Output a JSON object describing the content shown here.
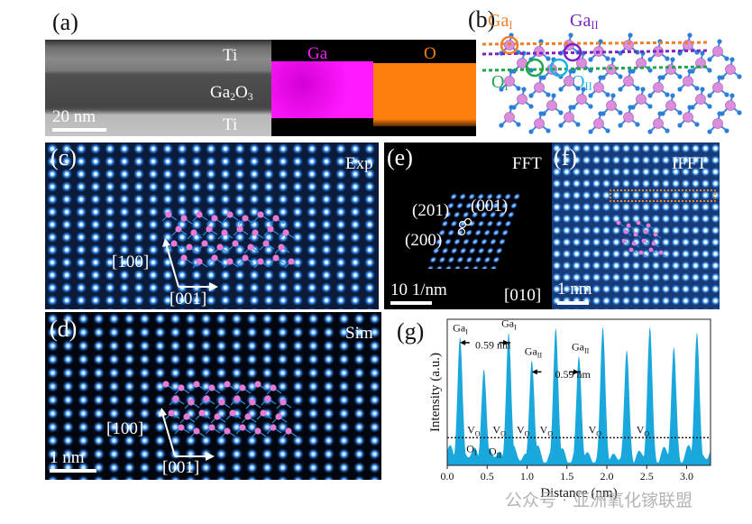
{
  "panels": {
    "a": {
      "label": "(a)",
      "layers": {
        "top": "Ti",
        "middle_main": "Ga",
        "middle_sub": "2",
        "middle_main2": "O",
        "middle_sub2": "3",
        "bottom": "Ti"
      },
      "scale_bar": "20 nm",
      "eds_ga": "Ga",
      "eds_o": "O",
      "colors": {
        "ga_map": "#ff1aff",
        "o_map": "#ff7f0e"
      }
    },
    "b": {
      "label": "(b)",
      "ga1_main": "Ga",
      "ga1_sub": "I",
      "ga2_main": "Ga",
      "ga2_sub": "II",
      "o1_main": "O",
      "o1_sub": "I",
      "o2_main": "O",
      "o2_sub": "II",
      "colors": {
        "ga1": "#f07f2a",
        "ga2": "#7a22c4",
        "o1": "#1fa64a",
        "o2": "#1ab3e6",
        "ga_atom": "#d98fdc",
        "o_atom": "#2d7fd6"
      }
    },
    "c": {
      "label": "(c)",
      "tag": "Exp",
      "dir1": "[100]",
      "dir2": "[001]"
    },
    "d": {
      "label": "(d)",
      "tag": "Sim",
      "dir1": "[100]",
      "dir2": "[001]",
      "scale_bar": "1 nm"
    },
    "e": {
      "label": "(e)",
      "tag": "FFT",
      "spot1": "(201)",
      "spot2": "(001)",
      "spot3": "(200)",
      "scale_bar": "10 1/nm",
      "zone_axis": "[010]"
    },
    "f": {
      "label": "(f)",
      "tag": "IFFT",
      "scale_bar": "1 nm"
    },
    "g": {
      "label": "(g)"
    }
  },
  "watermark": "公众号 · 亚洲氧化镓联盟",
  "chart_data": {
    "type": "area",
    "title": "",
    "xlabel": "Distance (nm)",
    "ylabel": "Intensity (a.u.)",
    "xlim": [
      0.0,
      3.3
    ],
    "ylim": [
      0,
      1
    ],
    "xticks": [
      "0.0",
      "0.5",
      "1.0",
      "1.5",
      "2.0",
      "2.5",
      "3.0"
    ],
    "grid": false,
    "fill_color": "#1aa7dc",
    "threshold_line": 0.19,
    "peaks": [
      {
        "x": 0.16,
        "y": 0.88,
        "label": "GaI"
      },
      {
        "x": 0.46,
        "y": 0.66
      },
      {
        "x": 0.77,
        "y": 0.91,
        "label": "GaI"
      },
      {
        "x": 1.06,
        "y": 0.72,
        "label": "GaII"
      },
      {
        "x": 1.36,
        "y": 0.94
      },
      {
        "x": 1.65,
        "y": 0.75,
        "label": "GaII"
      },
      {
        "x": 1.95,
        "y": 0.95
      },
      {
        "x": 2.25,
        "y": 0.79
      },
      {
        "x": 2.54,
        "y": 0.95
      },
      {
        "x": 2.84,
        "y": 0.81
      },
      {
        "x": 3.13,
        "y": 0.91
      }
    ],
    "annotations": [
      {
        "text": "0.59 nm",
        "x": 0.35,
        "y": 0.8
      },
      {
        "text": "0.59 nm",
        "x": 1.35,
        "y": 0.6
      },
      {
        "text": "VO",
        "x": 0.25,
        "y": 0.22
      },
      {
        "text": "VO",
        "x": 0.57,
        "y": 0.22
      },
      {
        "text": "VO",
        "x": 0.87,
        "y": 0.22
      },
      {
        "text": "VO",
        "x": 1.16,
        "y": 0.22
      },
      {
        "text": "VO",
        "x": 1.77,
        "y": 0.22
      },
      {
        "text": "VO",
        "x": 2.37,
        "y": 0.22
      },
      {
        "text": "OI",
        "x": 0.24,
        "y": 0.09
      },
      {
        "text": "OII",
        "x": 0.52,
        "y": 0.07
      }
    ]
  }
}
